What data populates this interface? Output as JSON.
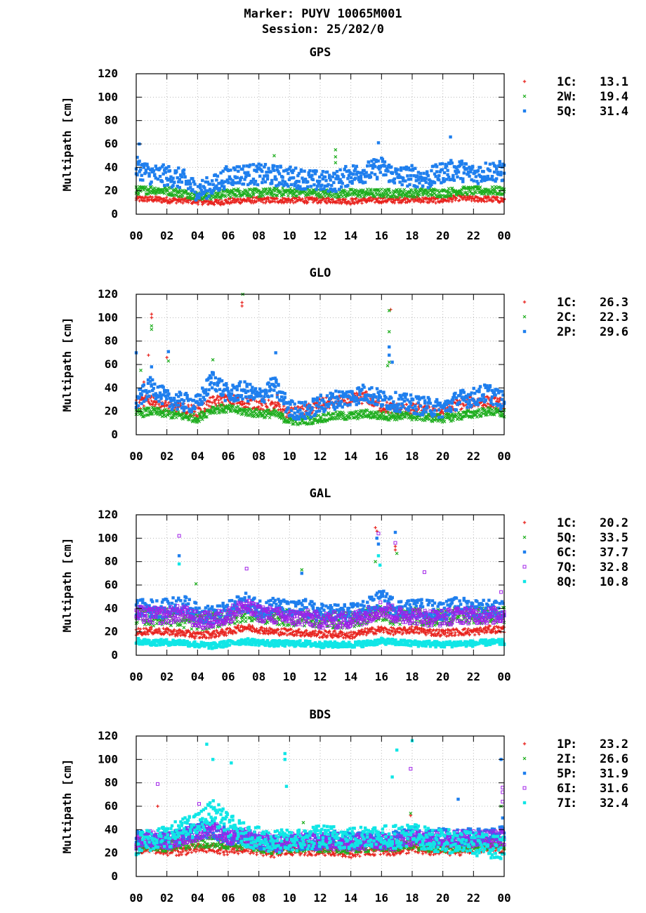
{
  "header": {
    "line1": "Marker: PUYV 10065M001",
    "line2": "Session: 25/202/0"
  },
  "colors": {
    "red": "#e8201b",
    "green": "#1fae1f",
    "blue": "#1f7fee",
    "purple": "#a020e8",
    "cyan": "#10e6e6"
  },
  "chart_data": [
    {
      "type": "scatter",
      "title": "GPS",
      "ylabel": "Multipath [cm]",
      "xlabel": "",
      "ylim": [
        0,
        120
      ],
      "yticks": [
        "0",
        "20",
        "40",
        "60",
        "80",
        "100",
        "120"
      ],
      "xlim": [
        0,
        24
      ],
      "xticks": [
        "00",
        "02",
        "04",
        "06",
        "08",
        "10",
        "12",
        "14",
        "16",
        "18",
        "20",
        "22",
        "00"
      ],
      "grid": true,
      "legend_position": "right",
      "series": [
        {
          "name": "1C",
          "value": "13.1",
          "color": "#e8201b",
          "marker": "plus",
          "base": [
            13,
            13,
            12,
            12,
            11,
            10,
            11,
            12,
            12,
            12,
            12,
            12,
            12,
            12,
            11,
            12,
            12,
            12,
            13,
            12,
            12,
            14,
            13,
            13,
            12
          ],
          "spread": 5,
          "spikes": []
        },
        {
          "name": "2W",
          "value": "19.4",
          "color": "#1fae1f",
          "marker": "cross",
          "base": [
            20,
            21,
            20,
            18,
            16,
            16,
            18,
            19,
            18,
            19,
            19,
            19,
            18,
            18,
            18,
            18,
            18,
            18,
            18,
            19,
            18,
            20,
            20,
            20,
            20
          ],
          "spread": 7,
          "spikes": [
            [
              9.0,
              50
            ],
            [
              13.0,
              55
            ],
            [
              13.0,
              49
            ],
            [
              13.0,
              44
            ]
          ]
        },
        {
          "name": "5Q",
          "value": "31.4",
          "color": "#1f7fee",
          "marker": "square",
          "base": [
            40,
            34,
            33,
            30,
            20,
            24,
            33,
            34,
            34,
            33,
            32,
            30,
            28,
            28,
            34,
            36,
            40,
            32,
            33,
            30,
            36,
            38,
            34,
            37,
            36
          ],
          "spread": 18,
          "spikes": [
            [
              0.2,
              60
            ],
            [
              15.8,
              61
            ],
            [
              20.5,
              66
            ]
          ]
        }
      ]
    },
    {
      "type": "scatter",
      "title": "GLO",
      "ylabel": "Multipath [cm]",
      "xlabel": "",
      "ylim": [
        0,
        120
      ],
      "yticks": [
        "0",
        "20",
        "40",
        "60",
        "80",
        "100",
        "120"
      ],
      "xlim": [
        0,
        24
      ],
      "xticks": [
        "00",
        "02",
        "04",
        "06",
        "08",
        "10",
        "12",
        "14",
        "16",
        "18",
        "20",
        "22",
        "00"
      ],
      "grid": true,
      "legend_position": "right",
      "series": [
        {
          "name": "1C",
          "value": "26.3",
          "color": "#e8201b",
          "marker": "plus",
          "base": [
            26,
            30,
            24,
            22,
            20,
            28,
            30,
            28,
            26,
            24,
            18,
            20,
            26,
            28,
            30,
            32,
            24,
            22,
            22,
            20,
            20,
            26,
            28,
            28,
            26
          ],
          "spread": 10,
          "spikes": [
            [
              1.0,
              103
            ],
            [
              1.0,
              100
            ],
            [
              0.8,
              68
            ],
            [
              6.9,
              113
            ],
            [
              6.9,
              110
            ],
            [
              16.6,
              107
            ],
            [
              0.5,
              45
            ],
            [
              9.2,
              34
            ],
            [
              2.0,
              66
            ]
          ]
        },
        {
          "name": "2C",
          "value": "22.3",
          "color": "#1fae1f",
          "marker": "cross",
          "base": [
            18,
            20,
            18,
            16,
            14,
            22,
            22,
            20,
            18,
            18,
            12,
            12,
            14,
            16,
            16,
            18,
            16,
            16,
            16,
            15,
            14,
            16,
            18,
            20,
            18
          ],
          "spread": 7,
          "spikes": [
            [
              1.0,
              93
            ],
            [
              1.0,
              90
            ],
            [
              6.95,
              120
            ],
            [
              16.5,
              106
            ],
            [
              16.5,
              88
            ],
            [
              16.5,
              62
            ],
            [
              5.0,
              64
            ],
            [
              2.1,
              63
            ],
            [
              0.3,
              55
            ],
            [
              16.4,
              59
            ]
          ]
        },
        {
          "name": "2P",
          "value": "29.6",
          "color": "#1f7fee",
          "marker": "square",
          "base": [
            28,
            42,
            30,
            28,
            26,
            48,
            34,
            38,
            32,
            42,
            22,
            20,
            26,
            30,
            32,
            36,
            30,
            28,
            26,
            24,
            22,
            30,
            32,
            36,
            28
          ],
          "spread": 16,
          "spikes": [
            [
              2.1,
              71
            ],
            [
              9.1,
              70
            ],
            [
              16.5,
              75
            ],
            [
              16.5,
              68
            ],
            [
              0.0,
              70
            ],
            [
              1.0,
              58
            ],
            [
              16.7,
              62
            ]
          ]
        }
      ]
    },
    {
      "type": "scatter",
      "title": "GAL",
      "ylabel": "Multipath [cm]",
      "xlabel": "",
      "ylim": [
        0,
        120
      ],
      "yticks": [
        "0",
        "20",
        "40",
        "60",
        "80",
        "100",
        "120"
      ],
      "xlim": [
        0,
        24
      ],
      "xticks": [
        "00",
        "02",
        "04",
        "06",
        "08",
        "10",
        "12",
        "14",
        "16",
        "18",
        "20",
        "22",
        "00"
      ],
      "grid": true,
      "legend_position": "right",
      "series": [
        {
          "name": "1C",
          "value": "20.2",
          "color": "#e8201b",
          "marker": "plus",
          "base": [
            20,
            21,
            20,
            19,
            17,
            18,
            20,
            24,
            22,
            20,
            20,
            19,
            18,
            18,
            17,
            20,
            22,
            20,
            22,
            20,
            19,
            20,
            20,
            22,
            22
          ],
          "spread": 6,
          "spikes": [
            [
              15.6,
              109
            ],
            [
              15.7,
              106
            ],
            [
              16.9,
              93
            ],
            [
              16.9,
              90
            ]
          ]
        },
        {
          "name": "5Q",
          "value": "33.5",
          "color": "#1fae1f",
          "marker": "cross",
          "base": [
            34,
            32,
            33,
            30,
            28,
            30,
            32,
            36,
            34,
            33,
            32,
            32,
            30,
            30,
            30,
            34,
            36,
            32,
            34,
            32,
            32,
            34,
            34,
            34,
            34
          ],
          "spread": 14,
          "spikes": [
            [
              3.9,
              61
            ],
            [
              10.8,
              73
            ],
            [
              17.0,
              87
            ],
            [
              15.6,
              80
            ]
          ]
        },
        {
          "name": "6C",
          "value": "37.7",
          "color": "#1f7fee",
          "marker": "square",
          "base": [
            40,
            40,
            40,
            44,
            36,
            34,
            38,
            46,
            40,
            42,
            38,
            40,
            36,
            36,
            36,
            40,
            48,
            40,
            40,
            40,
            38,
            42,
            40,
            40,
            38
          ],
          "spread": 16,
          "spikes": [
            [
              16.9,
              105
            ],
            [
              15.7,
              100
            ],
            [
              15.8,
              95
            ],
            [
              2.8,
              85
            ],
            [
              10.8,
              70
            ]
          ]
        },
        {
          "name": "7Q",
          "value": "32.8",
          "color": "#a020e8",
          "marker": "open-square",
          "base": [
            35,
            34,
            34,
            36,
            30,
            30,
            34,
            42,
            36,
            34,
            32,
            32,
            30,
            30,
            30,
            34,
            40,
            34,
            34,
            32,
            32,
            34,
            34,
            34,
            34
          ],
          "spread": 14,
          "spikes": [
            [
              2.8,
              102
            ],
            [
              15.8,
              104
            ],
            [
              16.9,
              96
            ],
            [
              18.8,
              71
            ],
            [
              7.2,
              74
            ],
            [
              23.8,
              54
            ]
          ]
        },
        {
          "name": "8Q",
          "value": "10.8",
          "color": "#10e6e6",
          "marker": "square",
          "base": [
            12,
            11,
            11,
            11,
            9,
            8,
            10,
            12,
            11,
            10,
            10,
            10,
            9,
            9,
            9,
            10,
            12,
            11,
            10,
            10,
            9,
            10,
            10,
            11,
            11
          ],
          "spread": 5,
          "spikes": [
            [
              2.8,
              78
            ],
            [
              15.8,
              85
            ],
            [
              15.9,
              77
            ]
          ]
        }
      ]
    },
    {
      "type": "scatter",
      "title": "BDS",
      "ylabel": "Multipath [cm]",
      "xlabel": "",
      "ylim": [
        0,
        120
      ],
      "yticks": [
        "0",
        "20",
        "40",
        "60",
        "80",
        "100",
        "120"
      ],
      "xlim": [
        0,
        24
      ],
      "xticks": [
        "00",
        "02",
        "04",
        "06",
        "08",
        "10",
        "12",
        "14",
        "16",
        "18",
        "20",
        "22",
        "00"
      ],
      "grid": true,
      "legend_position": "right",
      "series": [
        {
          "name": "1P",
          "value": "23.2",
          "color": "#e8201b",
          "marker": "plus",
          "base": [
            24,
            24,
            22,
            22,
            24,
            24,
            22,
            24,
            22,
            20,
            22,
            22,
            22,
            22,
            20,
            22,
            22,
            22,
            24,
            22,
            22,
            22,
            24,
            24,
            24
          ],
          "spread": 8,
          "spikes": [
            [
              1.4,
              60
            ],
            [
              17.9,
              52
            ]
          ]
        },
        {
          "name": "2I",
          "value": "26.6",
          "color": "#1fae1f",
          "marker": "cross",
          "base": [
            28,
            28,
            26,
            28,
            30,
            30,
            28,
            28,
            26,
            24,
            26,
            26,
            26,
            26,
            24,
            26,
            26,
            26,
            28,
            26,
            26,
            26,
            28,
            28,
            28
          ],
          "spread": 10,
          "spikes": [
            [
              10.9,
              46
            ],
            [
              17.9,
              54
            ],
            [
              23.8,
              60
            ]
          ]
        },
        {
          "name": "5P",
          "value": "31.9",
          "color": "#1f7fee",
          "marker": "square",
          "base": [
            32,
            32,
            30,
            34,
            40,
            40,
            34,
            34,
            30,
            28,
            30,
            30,
            30,
            32,
            30,
            32,
            30,
            32,
            36,
            34,
            34,
            34,
            34,
            34,
            36
          ],
          "spread": 14,
          "spikes": [
            [
              23.8,
              100
            ],
            [
              21.0,
              66
            ],
            [
              23.9,
              50
            ]
          ]
        },
        {
          "name": "6I",
          "value": "31.6",
          "color": "#a020e8",
          "marker": "open-square",
          "base": [
            30,
            32,
            30,
            34,
            38,
            40,
            34,
            34,
            30,
            28,
            30,
            30,
            30,
            30,
            28,
            30,
            30,
            30,
            34,
            32,
            32,
            32,
            32,
            32,
            34
          ],
          "spread": 14,
          "spikes": [
            [
              1.4,
              79
            ],
            [
              4.1,
              62
            ],
            [
              17.9,
              92
            ],
            [
              23.9,
              76
            ],
            [
              23.9,
              72
            ],
            [
              23.9,
              64
            ]
          ]
        },
        {
          "name": "7I",
          "value": "32.4",
          "color": "#10e6e6",
          "marker": "square",
          "base": [
            28,
            32,
            34,
            40,
            44,
            56,
            44,
            36,
            32,
            30,
            30,
            32,
            34,
            34,
            32,
            36,
            34,
            34,
            36,
            32,
            30,
            30,
            28,
            26,
            24
          ],
          "spread": 20,
          "spikes": [
            [
              4.6,
              113
            ],
            [
              5.0,
              100
            ],
            [
              6.2,
              97
            ],
            [
              9.7,
              105
            ],
            [
              9.7,
              100
            ],
            [
              17.0,
              108
            ],
            [
              18.0,
              116
            ],
            [
              16.7,
              85
            ],
            [
              9.8,
              77
            ]
          ]
        }
      ]
    }
  ]
}
